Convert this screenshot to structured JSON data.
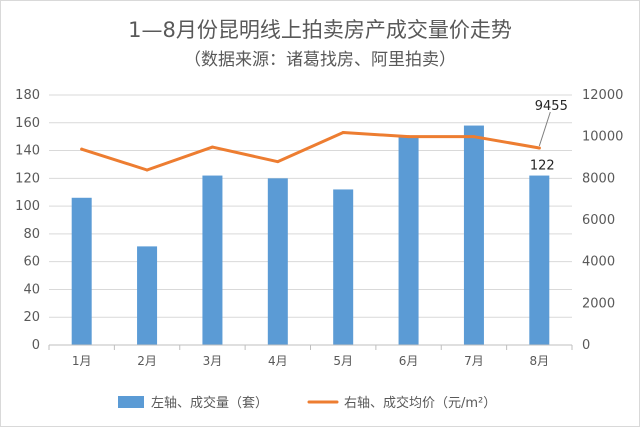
{
  "chart_data": {
    "type": "bar",
    "title": "1—8月份昆明线上拍卖房产成交量价走势",
    "subtitle": "（数据来源：诸葛找房、阿里拍卖）",
    "categories": [
      "1月",
      "2月",
      "3月",
      "4月",
      "5月",
      "6月",
      "7月",
      "8月"
    ],
    "series": [
      {
        "name": "左轴、成交量（套）",
        "type": "bar",
        "axis": "left",
        "color": "#5b9bd5",
        "values": [
          106,
          71,
          122,
          120,
          112,
          150,
          158,
          122
        ]
      },
      {
        "name": "右轴、成交均价（元/m²）",
        "type": "line",
        "axis": "right",
        "color": "#ed7d31",
        "values": [
          9400,
          8400,
          9500,
          8800,
          10200,
          10000,
          10000,
          9455
        ]
      }
    ],
    "y_left": {
      "lim": [
        0,
        180
      ],
      "ticks": [
        "0",
        "20",
        "40",
        "60",
        "80",
        "100",
        "120",
        "140",
        "160",
        "180"
      ]
    },
    "y_right": {
      "lim": [
        0,
        12000
      ],
      "ticks": [
        "0",
        "2000",
        "4000",
        "6000",
        "8000",
        "10000",
        "12000"
      ]
    },
    "data_labels": [
      {
        "series": 1,
        "index": 7,
        "text": "9455"
      },
      {
        "series": 0,
        "index": 7,
        "text": "122"
      }
    ],
    "grid": true,
    "legend_position": "bottom"
  }
}
